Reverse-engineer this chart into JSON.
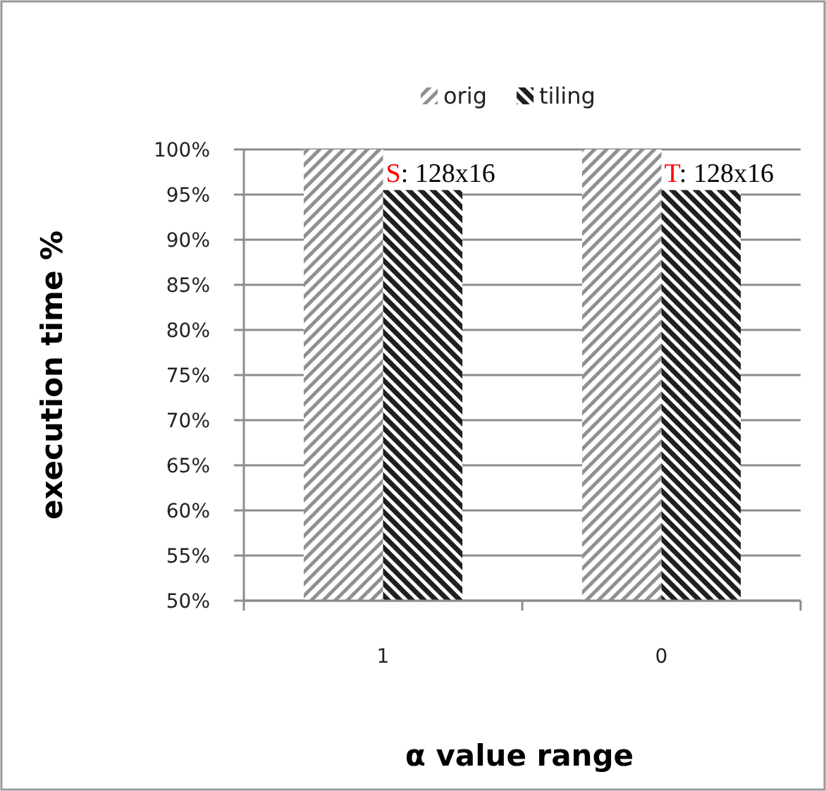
{
  "chart_data": {
    "type": "bar",
    "xlabel": "α value range",
    "ylabel": "execution time %",
    "categories": [
      "1",
      "0"
    ],
    "series": [
      {
        "name": "orig",
        "color": "#909090",
        "values": [
          100,
          100
        ]
      },
      {
        "name": "tiling",
        "color": "#202020",
        "values": [
          95.5,
          95.5
        ]
      }
    ],
    "ylim": [
      50,
      100
    ],
    "yticks": [
      {
        "value": 50,
        "label": "50%"
      },
      {
        "value": 55,
        "label": "55%"
      },
      {
        "value": 60,
        "label": "60%"
      },
      {
        "value": 65,
        "label": "65%"
      },
      {
        "value": 70,
        "label": "70%"
      },
      {
        "value": 75,
        "label": "75%"
      },
      {
        "value": 80,
        "label": "80%"
      },
      {
        "value": 85,
        "label": "85%"
      },
      {
        "value": 90,
        "label": "90%"
      },
      {
        "value": 95,
        "label": "95%"
      },
      {
        "value": 100,
        "label": "100%"
      }
    ],
    "grid": "y",
    "legend": "top",
    "annotations": [
      {
        "text": "S: 128x16",
        "x": "1",
        "y": 95.5
      },
      {
        "text": "T: 128x16",
        "x": "0",
        "y": 95.5
      }
    ]
  }
}
